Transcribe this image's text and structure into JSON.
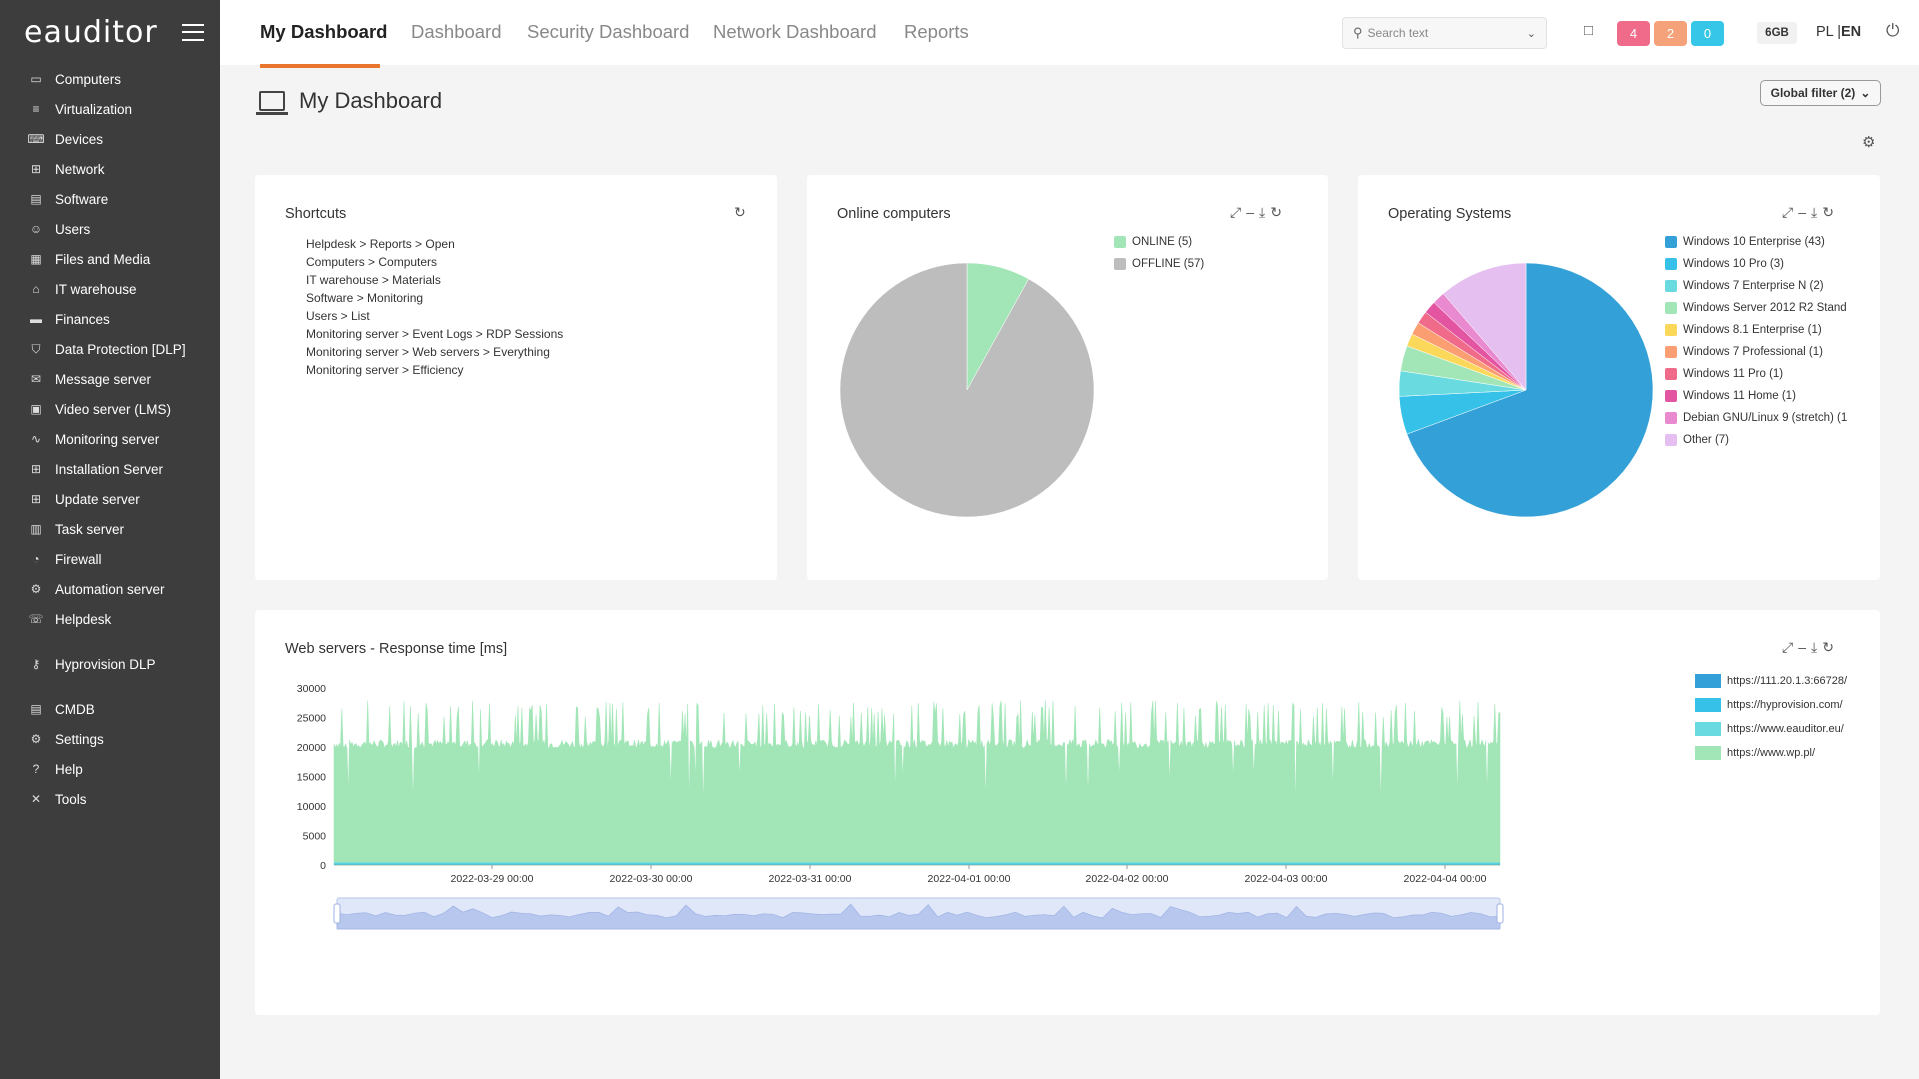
{
  "app": {
    "logo": "eauditor"
  },
  "sidebar": {
    "groups": [
      [
        {
          "label": "Computers",
          "icon": "monitor-icon"
        },
        {
          "label": "Virtualization",
          "icon": "server-icon"
        },
        {
          "label": "Devices",
          "icon": "devices-icon"
        },
        {
          "label": "Network",
          "icon": "network-icon"
        },
        {
          "label": "Software",
          "icon": "software-icon"
        },
        {
          "label": "Users",
          "icon": "users-icon"
        },
        {
          "label": "Files and Media",
          "icon": "files-icon"
        },
        {
          "label": "IT warehouse",
          "icon": "warehouse-icon"
        },
        {
          "label": "Finances",
          "icon": "finances-icon"
        },
        {
          "label": "Data Protection [DLP]",
          "icon": "shield-icon"
        },
        {
          "label": "Message server",
          "icon": "mail-icon"
        },
        {
          "label": "Video server (LMS)",
          "icon": "video-icon"
        },
        {
          "label": "Monitoring server",
          "icon": "monitoring-icon"
        },
        {
          "label": "Installation Server",
          "icon": "installation-icon"
        },
        {
          "label": "Update server",
          "icon": "update-icon"
        },
        {
          "label": "Task server",
          "icon": "clipboard-icon"
        },
        {
          "label": "Firewall",
          "icon": "firewall-icon"
        },
        {
          "label": "Automation server",
          "icon": "automation-icon"
        },
        {
          "label": "Helpdesk",
          "icon": "helpdesk-icon"
        }
      ],
      [
        {
          "label": "Hyprovision DLP",
          "icon": "user-key-icon"
        }
      ],
      [
        {
          "label": "CMDB",
          "icon": "database-icon"
        },
        {
          "label": "Settings",
          "icon": "gear-icon"
        },
        {
          "label": "Help",
          "icon": "help-icon"
        },
        {
          "label": "Tools",
          "icon": "tools-icon"
        }
      ]
    ]
  },
  "topbar": {
    "tabs": [
      "My Dashboard",
      "Dashboard",
      "Security Dashboard",
      "Network Dashboard",
      "Reports"
    ],
    "search_placeholder": "Search text",
    "badges": [
      {
        "value": "4",
        "color": "#f06b8a"
      },
      {
        "value": "2",
        "color": "#f5a27a"
      },
      {
        "value": "0",
        "color": "#35c6e8"
      }
    ],
    "memory": "6GB",
    "lang_pl": "PL",
    "lang_sep": "|",
    "lang_en": "EN"
  },
  "page": {
    "title": "My Dashboard",
    "global_filter": "Global filter (2)"
  },
  "shortcuts": {
    "title": "Shortcuts",
    "items": [
      "Helpdesk > Reports > Open",
      "Computers > Computers",
      "IT warehouse > Materials",
      "Software > Monitoring",
      "Users > List",
      "Monitoring server > Event Logs > RDP Sessions",
      "Monitoring server > Web servers > Everything",
      "Monitoring server >  Efficiency"
    ]
  },
  "chart_data": [
    {
      "type": "pie",
      "title": "Online computers",
      "categories": [
        "ONLINE (5)",
        "OFFLINE (57)"
      ],
      "values": [
        5,
        57
      ],
      "colors": [
        "#a2e6b8",
        "#bdbdbd"
      ]
    },
    {
      "type": "pie",
      "title": "Operating Systems",
      "categories": [
        "Windows 10 Enterprise (43)",
        "Windows 10 Pro (3)",
        "Windows 7 Enterprise N (2)",
        "Windows Server 2012 R2 Stand",
        "Windows 8.1 Enterprise (1)",
        "Windows 7 Professional (1)",
        "Windows 11 Pro (1)",
        "Windows 11 Home (1)",
        "Debian GNU/Linux 9 (stretch) (1",
        "Other (7)"
      ],
      "values": [
        43,
        3,
        2,
        2,
        1,
        1,
        1,
        1,
        1,
        7
      ],
      "colors": [
        "#34a0d8",
        "#36c2e8",
        "#69dbe0",
        "#a2e6b8",
        "#fcd85a",
        "#fb9f72",
        "#f06b8a",
        "#e355a0",
        "#e98ad0",
        "#e4bff0"
      ]
    },
    {
      "type": "area",
      "title": "Web servers - Response time [ms]",
      "ylim": [
        0,
        30000
      ],
      "yticks": [
        "30000",
        "25000",
        "20000",
        "15000",
        "10000",
        "5000",
        "0"
      ],
      "xticks": [
        "2022-03-29 00:00",
        "2022-03-30 00:00",
        "2022-03-31 00:00",
        "2022-04-01 00:00",
        "2022-04-02 00:00",
        "2022-04-03 00:00",
        "2022-04-04 00:00"
      ],
      "x_range": [
        "2022-03-28 06:00",
        "2022-04-04 10:00"
      ],
      "series": [
        {
          "name": "https://111.20.1.3:66728/",
          "color": "#34a0d8",
          "typical": 0
        },
        {
          "name": "https://hyprovision.com/",
          "color": "#36c2e8",
          "typical": 0
        },
        {
          "name": "https://www.eauditor.eu/",
          "color": "#69dbe0",
          "typical": 0
        },
        {
          "name": "https://www.wp.pl/",
          "color": "#a2e6b8",
          "typical": 20500,
          "peaks": 28000
        }
      ]
    }
  ]
}
